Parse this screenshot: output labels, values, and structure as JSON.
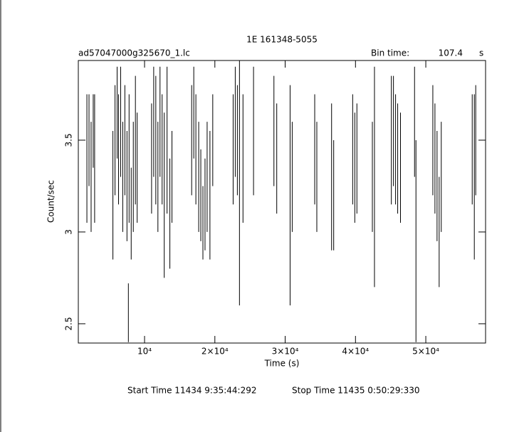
{
  "chart_data": {
    "type": "errorbar",
    "title": "1E 161348-5055",
    "filename": "ad57047000g325670_1.lc",
    "bin_time_label": "Bin time:",
    "bin_time": 107.4,
    "bin_time_unit": "s",
    "xlabel": "Time (s)",
    "ylabel": "Count/sec",
    "start_time": "Start Time 11434  9:35:44:292",
    "stop_time": "Stop Time 11435  0:50:29:330",
    "color": "#000000",
    "xlim": [
      580,
      58500
    ],
    "ylim": [
      2.395,
      3.934
    ],
    "xticks": [
      {
        "value": 10000,
        "label": "10⁴"
      },
      {
        "value": 20000,
        "label": "2×10⁴"
      },
      {
        "value": 30000,
        "label": "3×10⁴"
      },
      {
        "value": 40000,
        "label": "4×10⁴"
      },
      {
        "value": 50000,
        "label": "5×10⁴"
      }
    ],
    "yticks": [
      2.5,
      3,
      3.5
    ],
    "x": [
      1800,
      2100,
      2400,
      2700,
      2900,
      5500,
      5800,
      6100,
      6300,
      6600,
      6900,
      7200,
      7500,
      7700,
      7800,
      8100,
      8400,
      8700,
      8950,
      11000,
      11300,
      11600,
      11900,
      12200,
      12500,
      12800,
      13200,
      13600,
      13900,
      16700,
      17000,
      17300,
      17700,
      18000,
      18300,
      18600,
      18900,
      19300,
      19700,
      22600,
      22900,
      23200,
      23500,
      24000,
      25500,
      28400,
      28800,
      30700,
      31000,
      34200,
      34500,
      36600,
      36900,
      39600,
      39900,
      40200,
      42400,
      42700,
      45100,
      45400,
      45700,
      46000,
      46400,
      48400,
      48600,
      51000,
      51300,
      51600,
      51900,
      52200,
      56600,
      56900,
      57100
    ],
    "values": [
      3.4,
      3.5,
      3.3,
      3.55,
      3.4,
      3.2,
      3.5,
      3.65,
      3.45,
      3.6,
      3.3,
      3.5,
      3.25,
      2.56,
      3.4,
      3.1,
      3.3,
      3.5,
      3.35,
      3.4,
      3.6,
      3.5,
      3.3,
      3.6,
      3.45,
      3.2,
      3.5,
      3.1,
      3.3,
      3.5,
      3.65,
      3.45,
      3.3,
      3.2,
      3.05,
      3.15,
      3.3,
      3.2,
      3.5,
      3.45,
      3.6,
      3.5,
      3.3,
      3.4,
      3.55,
      3.55,
      3.4,
      3.2,
      3.3,
      3.45,
      3.3,
      3.3,
      3.2,
      3.45,
      3.35,
      3.4,
      3.3,
      3.3,
      3.5,
      3.55,
      3.45,
      3.4,
      3.35,
      3.6,
      2.95,
      3.5,
      3.4,
      3.25,
      3.0,
      3.3,
      3.45,
      3.3,
      3.5
    ],
    "errors": [
      0.35,
      0.25,
      0.3,
      0.2,
      0.35,
      0.35,
      0.3,
      0.25,
      0.3,
      0.3,
      0.3,
      0.3,
      0.3,
      0.16,
      0.35,
      0.25,
      0.3,
      0.35,
      0.3,
      0.3,
      0.3,
      0.35,
      0.3,
      0.3,
      0.3,
      0.45,
      0.4,
      0.3,
      0.25,
      0.3,
      0.25,
      0.3,
      0.3,
      0.25,
      0.2,
      0.25,
      0.3,
      0.35,
      0.25,
      0.3,
      0.3,
      0.3,
      0.7,
      0.35,
      0.35,
      0.3,
      0.3,
      0.6,
      0.3,
      0.3,
      0.3,
      0.4,
      0.3,
      0.3,
      0.3,
      0.3,
      0.3,
      0.6,
      0.35,
      0.3,
      0.3,
      0.3,
      0.3,
      0.3,
      0.55,
      0.3,
      0.3,
      0.3,
      0.3,
      0.3,
      0.3,
      0.45,
      0.3
    ]
  }
}
